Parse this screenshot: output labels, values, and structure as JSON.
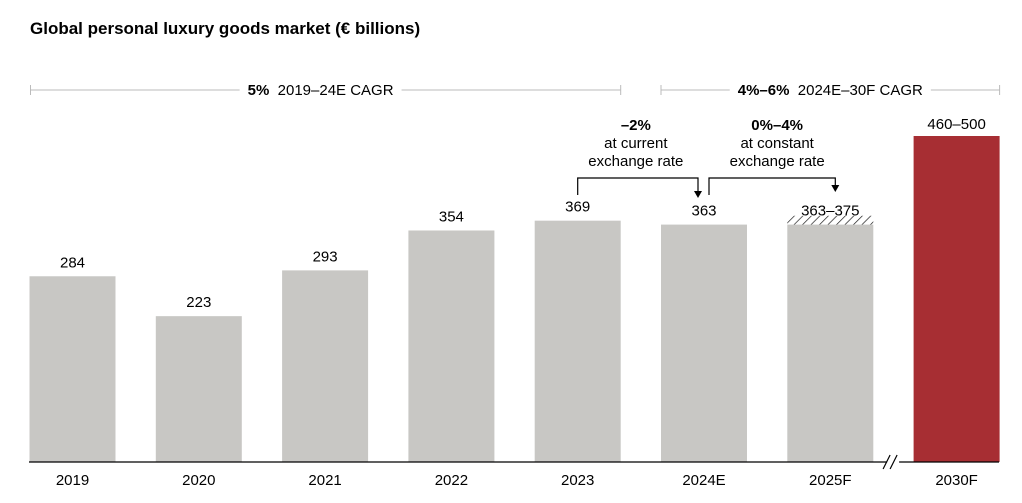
{
  "chart_data": {
    "type": "bar",
    "title": "Global personal luxury goods market (€ billions)",
    "categories": [
      "2019",
      "2020",
      "2021",
      "2022",
      "2023",
      "2024E",
      "2025F",
      "2030F"
    ],
    "values": [
      284,
      223,
      293,
      354,
      369,
      363,
      363,
      460
    ],
    "ranges": {
      "2025F": [
        363,
        375
      ],
      "2030F": [
        460,
        500
      ]
    },
    "data_labels": [
      "284",
      "223",
      "293",
      "354",
      "369",
      "363",
      "363–375",
      "460–500"
    ],
    "ylim": [
      0,
      500
    ],
    "xlabel": "",
    "ylabel": "",
    "grid": false,
    "axis_break_before": "2030F",
    "colors": {
      "bar": "#c8c7c4",
      "highlight": "#a72e33",
      "bracket": "#bbbbbb",
      "text": "#000000"
    },
    "cagr_brackets": [
      {
        "bold": "5%",
        "text": "2019–24E CAGR",
        "from": "2019",
        "to": "2023"
      },
      {
        "bold": "4%–6%",
        "text": "2024E–30F CAGR",
        "from": "2024E",
        "to": "2030F"
      }
    ],
    "annotations": [
      {
        "bold": "–2%",
        "lines": [
          "at current",
          "exchange rate"
        ],
        "from": "2023",
        "to": "2024E"
      },
      {
        "bold": "0%–4%",
        "lines": [
          "at constant",
          "exchange rate"
        ],
        "from": "2024E",
        "to": "2025F"
      }
    ]
  }
}
